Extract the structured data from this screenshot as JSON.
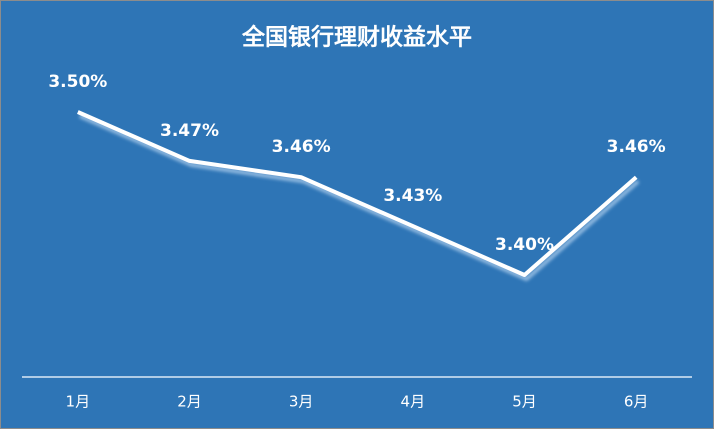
{
  "chart_data": {
    "type": "line",
    "title": "全国银行理财收益水平",
    "categories": [
      "1月",
      "2月",
      "3月",
      "4月",
      "5月",
      "6月"
    ],
    "values": [
      3.5,
      3.47,
      3.46,
      3.43,
      3.4,
      3.46
    ],
    "value_labels": [
      "3.50%",
      "3.47%",
      "3.46%",
      "3.43%",
      "3.40%",
      "3.46%"
    ],
    "color": "#ffffff",
    "background": "#2e75b6"
  }
}
